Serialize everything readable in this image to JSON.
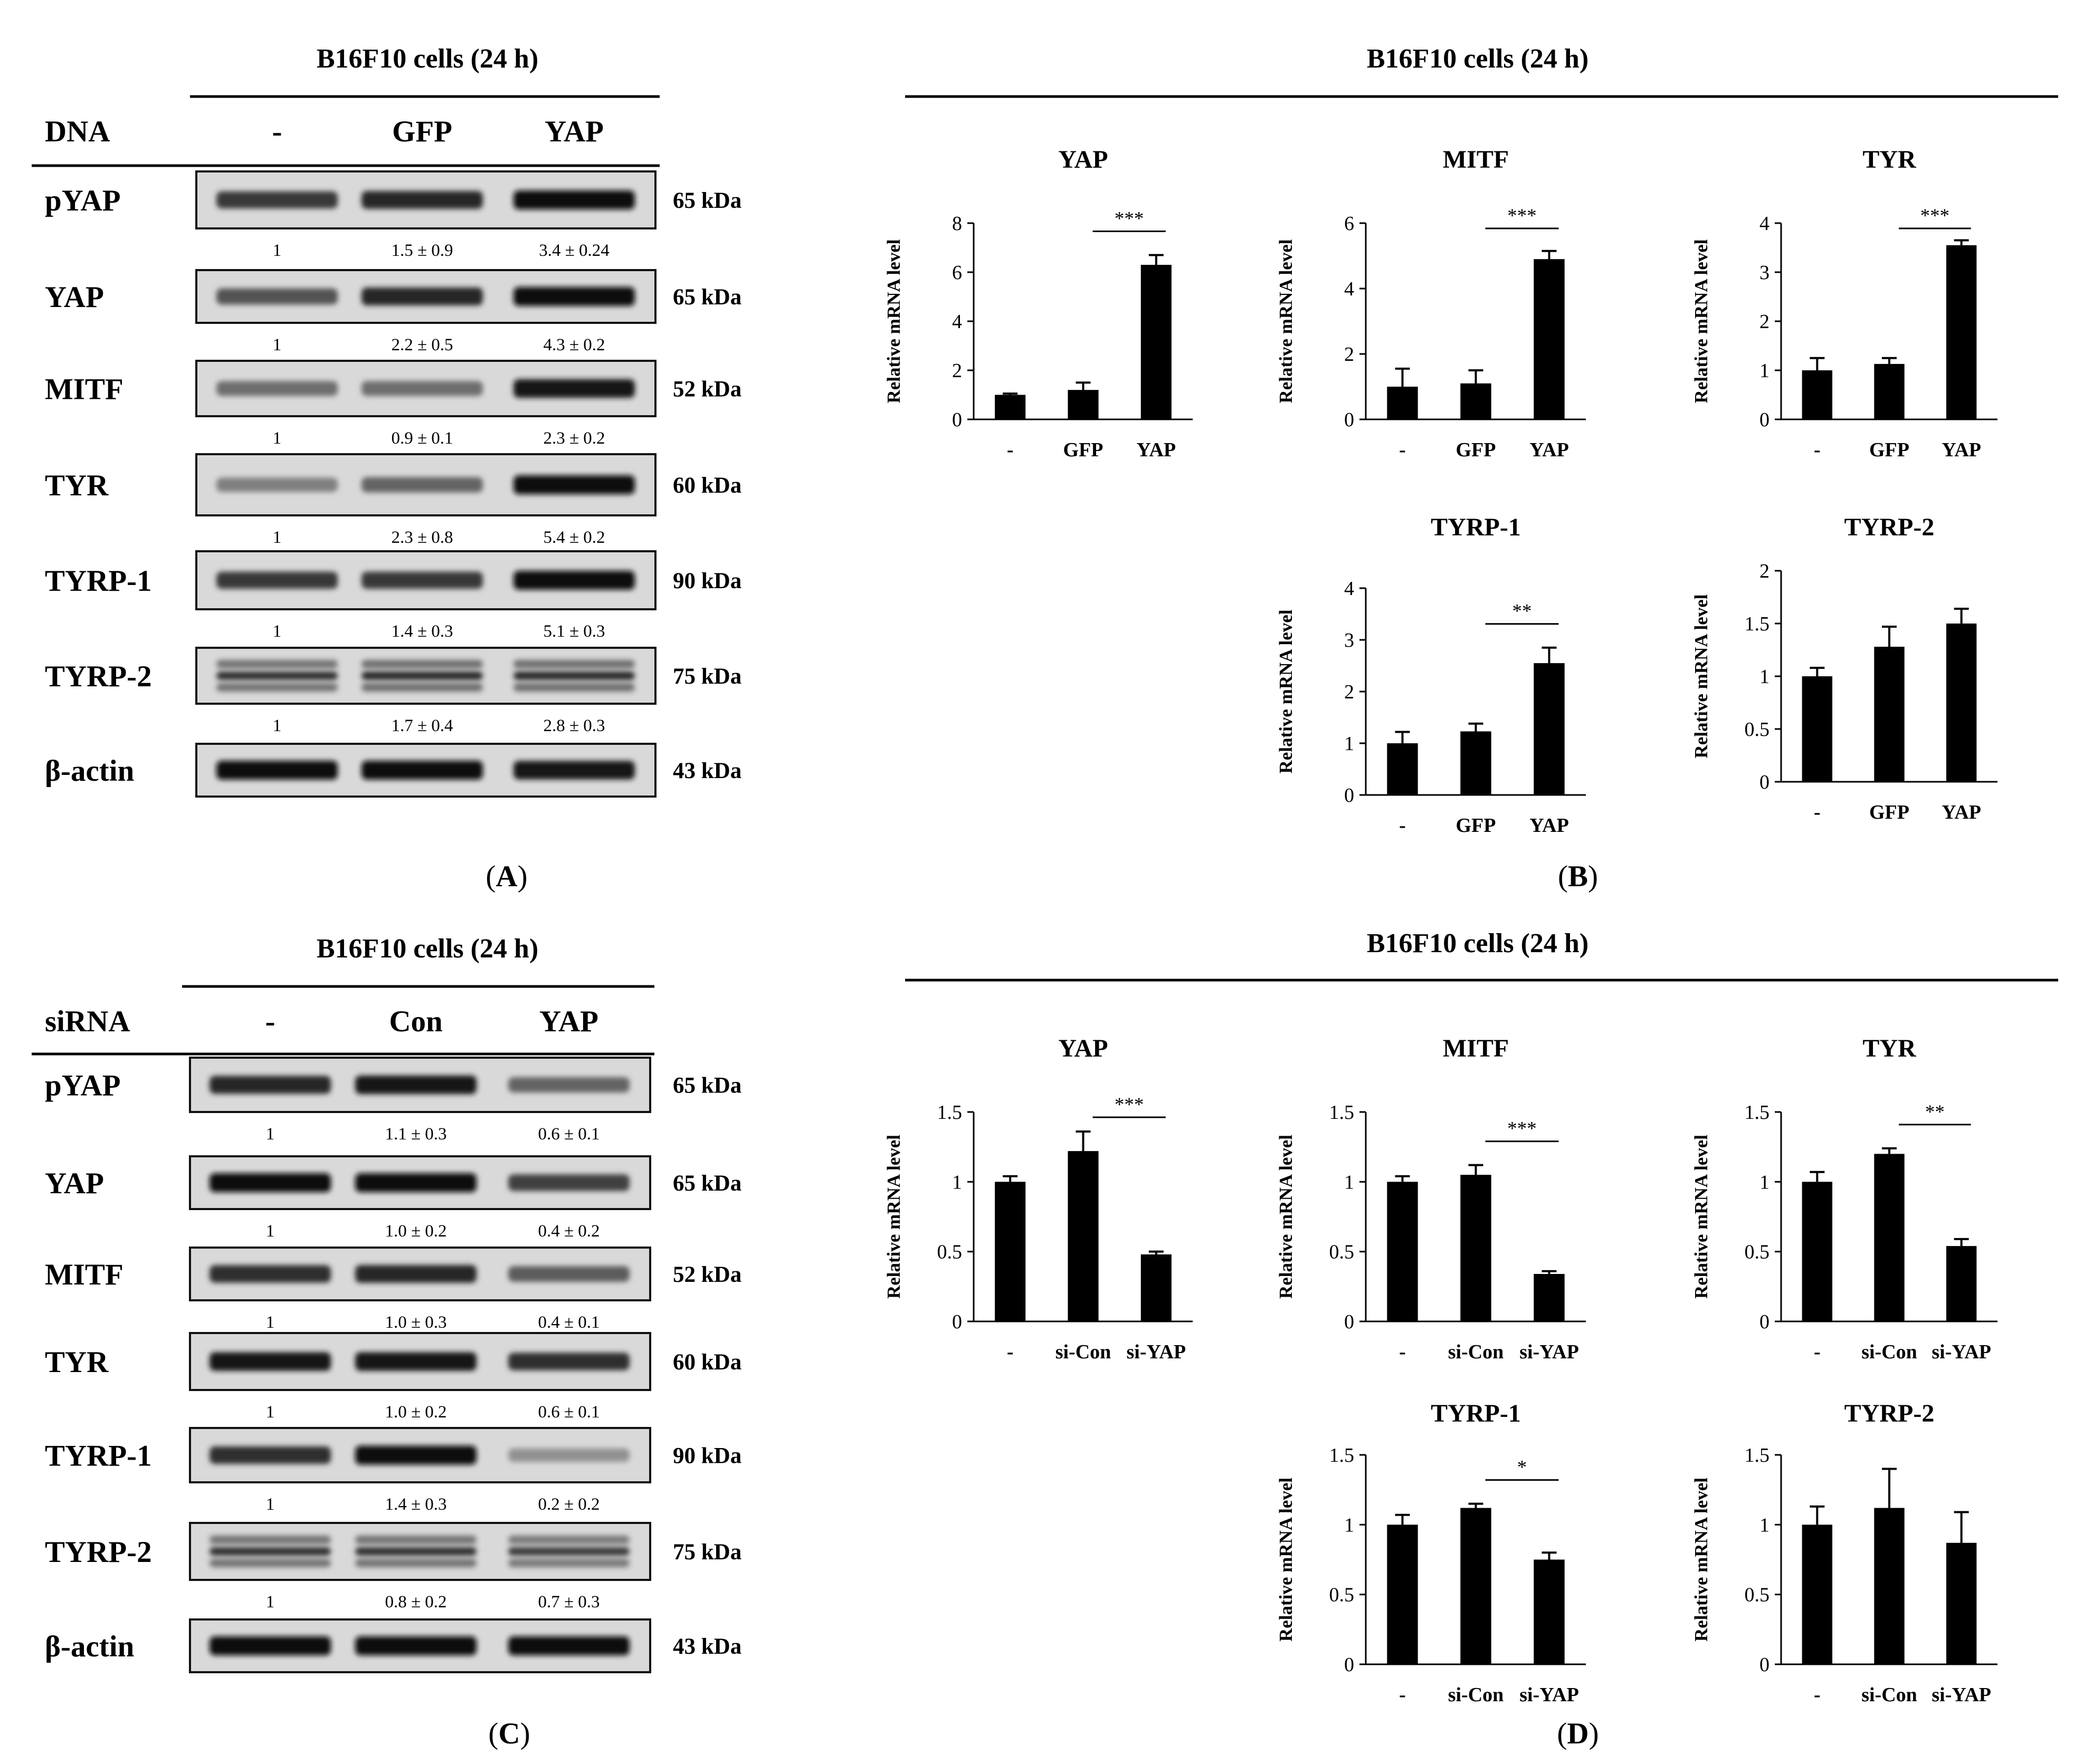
{
  "panels": {
    "A": {
      "letter": "A",
      "title": "B16F10 cells (24 h)",
      "treatment_label": "DNA",
      "lanes": [
        "-",
        "GFP",
        "YAP"
      ],
      "rows": [
        {
          "protein": "pYAP",
          "mw": "65 kDa",
          "intensity": [
            0.75,
            0.85,
            1.0
          ],
          "quant": [
            "1",
            "1.5 ± 0.9",
            "3.4 ± 0.24"
          ]
        },
        {
          "protein": "YAP",
          "mw": "65 kDa",
          "intensity": [
            0.6,
            0.85,
            1.0
          ],
          "quant": [
            "1",
            "2.2 ± 0.5",
            "4.3 ± 0.2"
          ]
        },
        {
          "protein": "MITF",
          "mw": "52 kDa",
          "intensity": [
            0.45,
            0.45,
            0.95
          ],
          "quant": [
            "1",
            "0.9 ± 0.1",
            "2.3 ± 0.2"
          ]
        },
        {
          "protein": "TYR",
          "mw": "60 kDa",
          "intensity": [
            0.35,
            0.5,
            1.0
          ],
          "quant": [
            "1",
            "2.3 ± 0.8",
            "5.4 ± 0.2"
          ]
        },
        {
          "protein": "TYRP-1",
          "mw": "90 kDa",
          "intensity": [
            0.75,
            0.75,
            1.0
          ],
          "quant": [
            "1",
            "1.4 ± 0.3",
            "5.1 ± 0.3"
          ]
        },
        {
          "protein": "TYRP-2",
          "mw": "75 kDa",
          "intensity": [
            0.8,
            0.85,
            0.85
          ],
          "quant": [
            "1",
            "1.7 ± 0.4",
            "2.8 ± 0.3"
          ]
        },
        {
          "protein": "β-actin",
          "mw": "43 kDa",
          "intensity": [
            1.0,
            1.0,
            0.95
          ],
          "quant": []
        }
      ]
    },
    "B": {
      "letter": "B",
      "title": "B16F10 cells (24 h)"
    },
    "C": {
      "letter": "C",
      "title": "B16F10 cells (24 h)",
      "treatment_label": "siRNA",
      "lanes": [
        "-",
        "Con",
        "YAP"
      ],
      "rows": [
        {
          "protein": "pYAP",
          "mw": "65 kDa",
          "intensity": [
            0.85,
            0.95,
            0.5
          ],
          "quant": [
            "1",
            "1.1 ± 0.3",
            "0.6 ± 0.1"
          ]
        },
        {
          "protein": "YAP",
          "mw": "65 kDa",
          "intensity": [
            1.0,
            1.0,
            0.7
          ],
          "quant": [
            "1",
            "1.0 ± 0.2",
            "0.4 ± 0.2"
          ]
        },
        {
          "protein": "MITF",
          "mw": "52 kDa",
          "intensity": [
            0.8,
            0.85,
            0.55
          ],
          "quant": [
            "1",
            "1.0 ± 0.3",
            "0.4 ± 0.1"
          ]
        },
        {
          "protein": "TYR",
          "mw": "60 kDa",
          "intensity": [
            0.95,
            0.95,
            0.8
          ],
          "quant": [
            "1",
            "1.0 ± 0.2",
            "0.6 ± 0.1"
          ]
        },
        {
          "protein": "TYRP-1",
          "mw": "90 kDa",
          "intensity": [
            0.8,
            1.0,
            0.25
          ],
          "quant": [
            "1",
            "1.4 ± 0.3",
            "0.2 ± 0.2"
          ]
        },
        {
          "protein": "TYRP-2",
          "mw": "75 kDa",
          "intensity": [
            0.8,
            0.8,
            0.75
          ],
          "quant": [
            "1",
            "0.8 ± 0.2",
            "0.7 ± 0.3"
          ]
        },
        {
          "protein": "β-actin",
          "mw": "43 kDa",
          "intensity": [
            1.0,
            1.0,
            1.0
          ],
          "quant": []
        }
      ]
    },
    "D": {
      "letter": "D",
      "title": "B16F10 cells (24 h)"
    }
  },
  "chart_data": [
    {
      "panel": "B",
      "type": "bar",
      "title": "YAP",
      "ylabel": "Relative mRNA level",
      "categories": [
        "-",
        "GFP",
        "YAP"
      ],
      "values": [
        1.0,
        1.2,
        6.3
      ],
      "errors": [
        0.05,
        0.3,
        0.4
      ],
      "ylim": [
        0,
        8
      ],
      "yticks": [
        0,
        2,
        4,
        6,
        8
      ],
      "significance": {
        "from": 1,
        "to": 2,
        "label": "***"
      }
    },
    {
      "panel": "B",
      "type": "bar",
      "title": "MITF",
      "ylabel": "Relative mRNA level",
      "categories": [
        "-",
        "GFP",
        "YAP"
      ],
      "values": [
        1.0,
        1.1,
        4.9
      ],
      "errors": [
        0.55,
        0.4,
        0.25
      ],
      "ylim": [
        0,
        6
      ],
      "yticks": [
        0,
        2,
        4,
        6
      ],
      "significance": {
        "from": 1,
        "to": 2,
        "label": "***"
      }
    },
    {
      "panel": "B",
      "type": "bar",
      "title": "TYR",
      "ylabel": "Relative mRNA level",
      "categories": [
        "-",
        "GFP",
        "YAP"
      ],
      "values": [
        1.0,
        1.13,
        3.55
      ],
      "errors": [
        0.25,
        0.12,
        0.1
      ],
      "ylim": [
        0,
        4
      ],
      "yticks": [
        0,
        1,
        2,
        3,
        4
      ],
      "significance": {
        "from": 1,
        "to": 2,
        "label": "***"
      }
    },
    {
      "panel": "B",
      "type": "bar",
      "title": "TYRP-1",
      "ylabel": "Relative mRNA level",
      "categories": [
        "-",
        "GFP",
        "YAP"
      ],
      "values": [
        1.0,
        1.23,
        2.55
      ],
      "errors": [
        0.22,
        0.15,
        0.3
      ],
      "ylim": [
        0,
        4
      ],
      "yticks": [
        0,
        1,
        2,
        3,
        4
      ],
      "significance": {
        "from": 1,
        "to": 2,
        "label": "**"
      }
    },
    {
      "panel": "B",
      "type": "bar",
      "title": "TYRP-2",
      "ylabel": "Relative mRNA level",
      "categories": [
        "-",
        "GFP",
        "YAP"
      ],
      "values": [
        1.0,
        1.28,
        1.5
      ],
      "errors": [
        0.08,
        0.19,
        0.14
      ],
      "ylim": [
        0,
        2
      ],
      "yticks": [
        0,
        0.5,
        1,
        1.5,
        2
      ],
      "significance": null
    },
    {
      "panel": "D",
      "type": "bar",
      "title": "YAP",
      "ylabel": "Relative mRNA level",
      "categories": [
        "-",
        "si-Con",
        "si-YAP"
      ],
      "values": [
        1.0,
        1.22,
        0.48
      ],
      "errors": [
        0.04,
        0.14,
        0.02
      ],
      "ylim": [
        0,
        1.5
      ],
      "yticks": [
        0,
        0.5,
        1,
        1.5
      ],
      "significance": {
        "from": 1,
        "to": 2,
        "label": "***"
      }
    },
    {
      "panel": "D",
      "type": "bar",
      "title": "MITF",
      "ylabel": "Relative mRNA level",
      "categories": [
        "-",
        "si-Con",
        "si-YAP"
      ],
      "values": [
        1.0,
        1.05,
        0.34
      ],
      "errors": [
        0.04,
        0.07,
        0.02
      ],
      "ylim": [
        0,
        1.5
      ],
      "yticks": [
        0,
        0.5,
        1,
        1.5
      ],
      "significance": {
        "from": 1,
        "to": 2,
        "label": "***"
      }
    },
    {
      "panel": "D",
      "type": "bar",
      "title": "TYR",
      "ylabel": "Relative mRNA level",
      "categories": [
        "-",
        "si-Con",
        "si-YAP"
      ],
      "values": [
        1.0,
        1.2,
        0.54
      ],
      "errors": [
        0.07,
        0.04,
        0.05
      ],
      "ylim": [
        0,
        1.5
      ],
      "yticks": [
        0,
        0.5,
        1,
        1.5
      ],
      "significance": {
        "from": 1,
        "to": 2,
        "label": "**"
      }
    },
    {
      "panel": "D",
      "type": "bar",
      "title": "TYRP-1",
      "ylabel": "Relative mRNA level",
      "categories": [
        "-",
        "si-Con",
        "si-YAP"
      ],
      "values": [
        1.0,
        1.12,
        0.75
      ],
      "errors": [
        0.07,
        0.03,
        0.05
      ],
      "ylim": [
        0,
        1.5
      ],
      "yticks": [
        0,
        0.5,
        1,
        1.5
      ],
      "significance": {
        "from": 1,
        "to": 2,
        "label": "*"
      }
    },
    {
      "panel": "D",
      "type": "bar",
      "title": "TYRP-2",
      "ylabel": "Relative mRNA level",
      "categories": [
        "-",
        "si-Con",
        "si-YAP"
      ],
      "values": [
        1.0,
        1.12,
        0.87
      ],
      "errors": [
        0.13,
        0.28,
        0.22
      ],
      "ylim": [
        0,
        1.5
      ],
      "yticks": [
        0,
        0.5,
        1,
        1.5
      ],
      "significance": null
    }
  ]
}
